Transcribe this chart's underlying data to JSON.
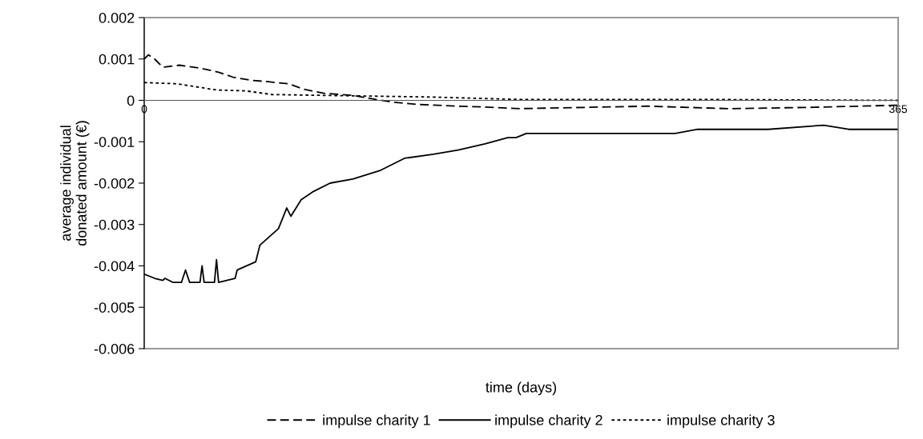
{
  "chart_data": {
    "type": "line",
    "xlabel": "time (days)",
    "ylabel": "average individual\ndonated amount (€)",
    "xlim": [
      0,
      365
    ],
    "xticks": [
      0,
      365
    ],
    "ylim": [
      -0.006,
      0.002
    ],
    "yticks": [
      -0.006,
      -0.005,
      -0.004,
      -0.003,
      -0.002,
      -0.001,
      0,
      0.001,
      0.002
    ],
    "grid": false,
    "legend": "bottom",
    "marker": "none",
    "series": [
      {
        "name": "impulse charity 1",
        "color": "#000000",
        "line_style": "dashed",
        "x": [
          0,
          2,
          5,
          9,
          17,
          27,
          36,
          43,
          51,
          60,
          70,
          77,
          87,
          101,
          110,
          120,
          133,
          152,
          165,
          182,
          244,
          283,
          322,
          363,
          365
        ],
        "values": [
          0.001,
          0.0011,
          0.001,
          0.0008,
          0.00085,
          0.00078,
          0.00068,
          0.00056,
          0.00049,
          0.00045,
          0.0004,
          0.00027,
          0.00017,
          0.00012,
          4e-05,
          -4e-05,
          -0.0001,
          -0.00014,
          -0.00016,
          -0.0002,
          -0.00014,
          -0.0002,
          -0.00017,
          -0.00012,
          -0.00012
        ]
      },
      {
        "name": "impulse charity 2",
        "color": "#000000",
        "line_style": "solid",
        "x": [
          0,
          5,
          9,
          10,
          14,
          18,
          20,
          22,
          27,
          28,
          29,
          34,
          35,
          36,
          44,
          45,
          54,
          56,
          65,
          69,
          71,
          76,
          82,
          90,
          101,
          114,
          126,
          140,
          152,
          165,
          176,
          180,
          185,
          196,
          257,
          268,
          283,
          302,
          329,
          341,
          365
        ],
        "values": [
          -0.0042,
          -0.0043,
          -0.00435,
          -0.0043,
          -0.0044,
          -0.0044,
          -0.0041,
          -0.0044,
          -0.0044,
          -0.004,
          -0.0044,
          -0.0044,
          -0.00385,
          -0.0044,
          -0.0043,
          -0.0041,
          -0.0039,
          -0.0035,
          -0.0031,
          -0.0026,
          -0.0028,
          -0.0024,
          -0.0022,
          -0.002,
          -0.0019,
          -0.0017,
          -0.0014,
          -0.0013,
          -0.0012,
          -0.00105,
          -0.0009,
          -0.0009,
          -0.0008,
          -0.0008,
          -0.0008,
          -0.0007,
          -0.0007,
          -0.0007,
          -0.0006,
          -0.0007,
          -0.0007
        ]
      },
      {
        "name": "impulse charity 3",
        "color": "#000000",
        "line_style": "dotted",
        "x": [
          0,
          16,
          35,
          49,
          62,
          87,
          113,
          139,
          183,
          280,
          365
        ],
        "values": [
          0.00043,
          0.0004,
          0.00025,
          0.00023,
          0.00014,
          0.00012,
          0.0001,
          8e-05,
          2e-05,
          2e-05,
          0
        ]
      }
    ]
  }
}
